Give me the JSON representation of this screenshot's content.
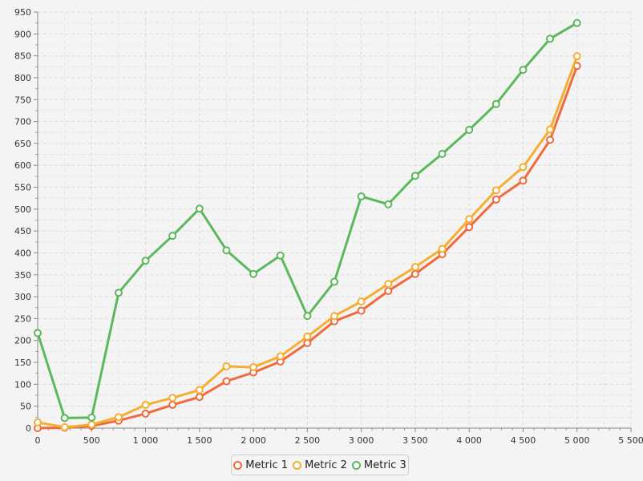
{
  "chart_data": {
    "type": "line",
    "title": "",
    "xlabel": "",
    "ylabel": "",
    "xlim": [
      0,
      5500
    ],
    "ylim": [
      0,
      950
    ],
    "x_ticks": [
      0,
      500,
      1000,
      1500,
      2000,
      2500,
      3000,
      3500,
      4000,
      4500,
      5000,
      5500
    ],
    "x_tick_labels": [
      "0",
      "500",
      "1 000",
      "1 500",
      "2 000",
      "2 500",
      "3 000",
      "3 500",
      "4 000",
      "4 500",
      "5 000",
      "5 500"
    ],
    "y_ticks": [
      0,
      50,
      100,
      150,
      200,
      250,
      300,
      350,
      400,
      450,
      500,
      550,
      600,
      650,
      700,
      750,
      800,
      850,
      900,
      950
    ],
    "y_tick_labels": [
      "0",
      "50",
      "100",
      "150",
      "200",
      "250",
      "300",
      "350",
      "400",
      "450",
      "500",
      "550",
      "600",
      "650",
      "700",
      "750",
      "800",
      "850",
      "900",
      "950"
    ],
    "grid": true,
    "legend_position": "bottom",
    "x": [
      0,
      250,
      500,
      750,
      1000,
      1250,
      1500,
      1750,
      2000,
      2250,
      2500,
      2750,
      3000,
      3250,
      3500,
      3750,
      4000,
      4250,
      4500,
      4750,
      5000
    ],
    "series": [
      {
        "name": "Metric 1",
        "color": "#ef6a3c",
        "values": [
          0,
          1,
          5,
          17,
          33,
          53,
          71,
          107,
          127,
          152,
          194,
          244,
          268,
          313,
          352,
          397,
          459,
          522,
          565,
          658,
          827
        ]
      },
      {
        "name": "Metric 2",
        "color": "#f5ae2f",
        "values": [
          13,
          2,
          8,
          25,
          53,
          69,
          87,
          141,
          139,
          164,
          209,
          256,
          289,
          329,
          368,
          409,
          477,
          543,
          596,
          682,
          849
        ]
      },
      {
        "name": "Metric 3",
        "color": "#5cb85c",
        "values": [
          217,
          23,
          24,
          309,
          382,
          439,
          501,
          406,
          352,
          394,
          256,
          334,
          529,
          511,
          576,
          626,
          681,
          740,
          818,
          889,
          925
        ]
      }
    ]
  }
}
